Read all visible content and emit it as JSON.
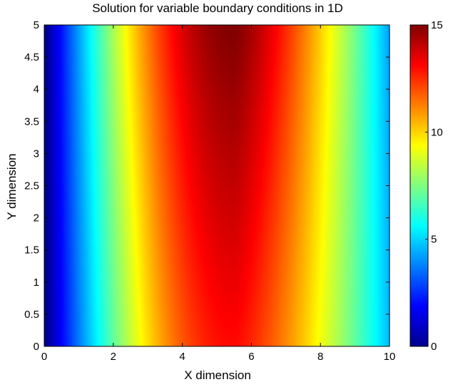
{
  "chart_data": {
    "type": "heatmap",
    "title": "Solution for variable boundary conditions in 1D",
    "xlabel": "X dimension",
    "ylabel": "Y dimension",
    "xlim": [
      0,
      10
    ],
    "ylim": [
      0,
      5
    ],
    "x_ticks": [
      "0",
      "2",
      "4",
      "6",
      "8",
      "10"
    ],
    "y_ticks": [
      "0",
      "0.5",
      "1",
      "1.5",
      "2",
      "2.5",
      "3",
      "3.5",
      "4",
      "4.5",
      "5"
    ],
    "colorbar": {
      "range": [
        0,
        15
      ],
      "ticks": [
        "0",
        "5",
        "10",
        "15"
      ],
      "colormap": "jet"
    },
    "field": {
      "description_values": "peak near x=5.5 at y=5 (~15), about 13 near y=0; near 0 at x=0 and ~4 at x=10",
      "peak_x": 5.5,
      "max_value": 15
    }
  }
}
